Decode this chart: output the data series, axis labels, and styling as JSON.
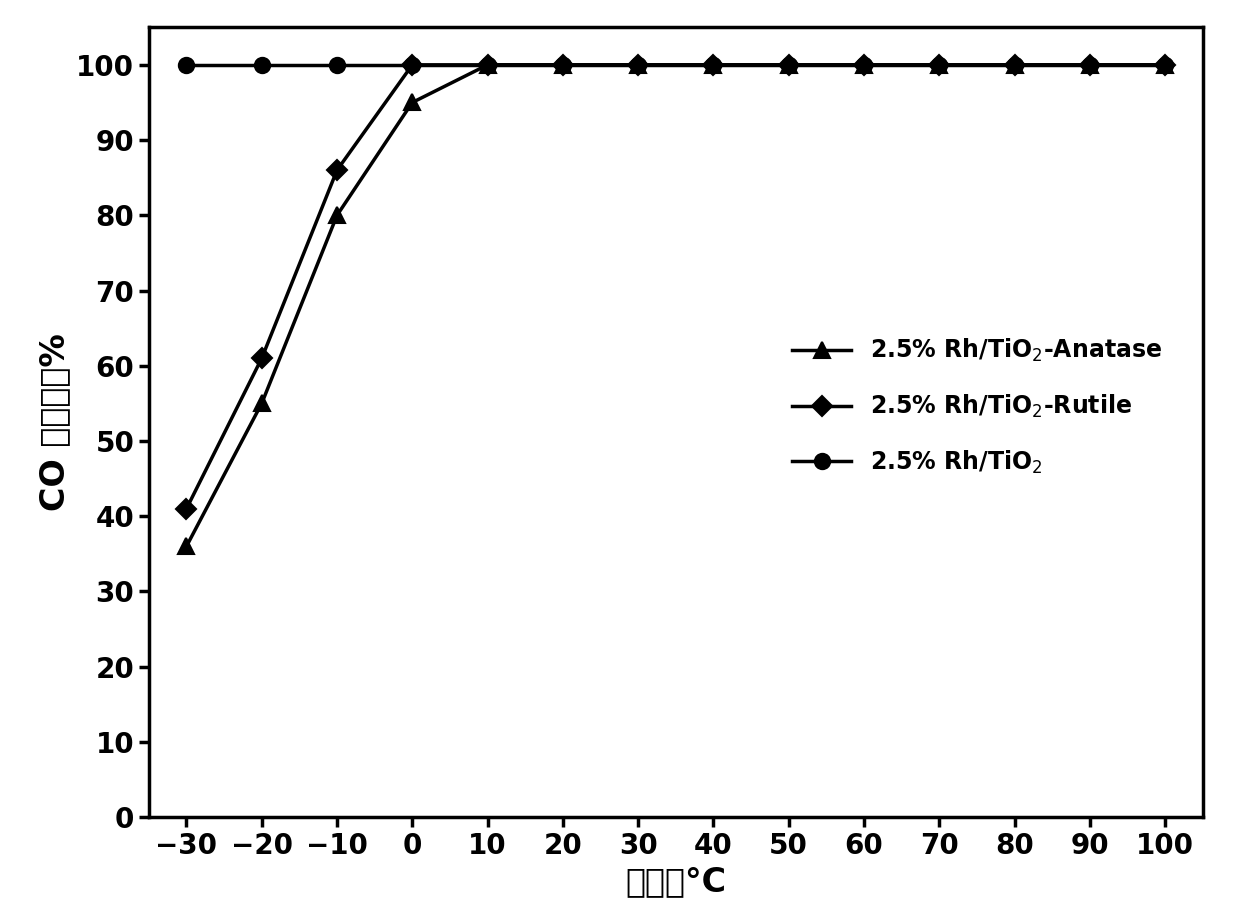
{
  "series": [
    {
      "label": "2.5% Rh/TiO$_2$-Anatase",
      "x": [
        -30,
        -20,
        -10,
        0,
        10,
        20,
        30,
        40,
        50,
        60,
        70,
        80,
        90,
        100
      ],
      "y": [
        36,
        55,
        80,
        95,
        100,
        100,
        100,
        100,
        100,
        100,
        100,
        100,
        100,
        100
      ],
      "marker": "^",
      "markersize": 11,
      "linewidth": 2.5,
      "color": "#000000"
    },
    {
      "label": "2.5% Rh/TiO$_2$-Rutile",
      "x": [
        -30,
        -20,
        -10,
        0,
        10,
        20,
        30,
        40,
        50,
        60,
        70,
        80,
        90,
        100
      ],
      "y": [
        41,
        61,
        86,
        100,
        100,
        100,
        100,
        100,
        100,
        100,
        100,
        100,
        100,
        100
      ],
      "marker": "D",
      "markersize": 10,
      "linewidth": 2.5,
      "color": "#000000"
    },
    {
      "label": "2.5% Rh/TiO$_2$",
      "x": [
        -30,
        -20,
        -10,
        0,
        10,
        20,
        30,
        40,
        50,
        60,
        70,
        80,
        90,
        100
      ],
      "y": [
        100,
        100,
        100,
        100,
        100,
        100,
        100,
        100,
        100,
        100,
        100,
        100,
        100,
        100
      ],
      "marker": "o",
      "markersize": 11,
      "linewidth": 2.5,
      "color": "#000000"
    }
  ],
  "xlabel_cn": "温度／°C",
  "ylabel_cn": "CO 转化率／%",
  "xlim": [
    -35,
    105
  ],
  "ylim": [
    0,
    105
  ],
  "xticks": [
    -30,
    -20,
    -10,
    0,
    10,
    20,
    30,
    40,
    50,
    60,
    70,
    80,
    90,
    100
  ],
  "yticks": [
    0,
    10,
    20,
    30,
    40,
    50,
    60,
    70,
    80,
    90,
    100
  ],
  "background_color": "#ffffff",
  "axis_color": "#000000",
  "tick_fontsize": 20,
  "label_fontsize": 24,
  "legend_fontsize": 17
}
